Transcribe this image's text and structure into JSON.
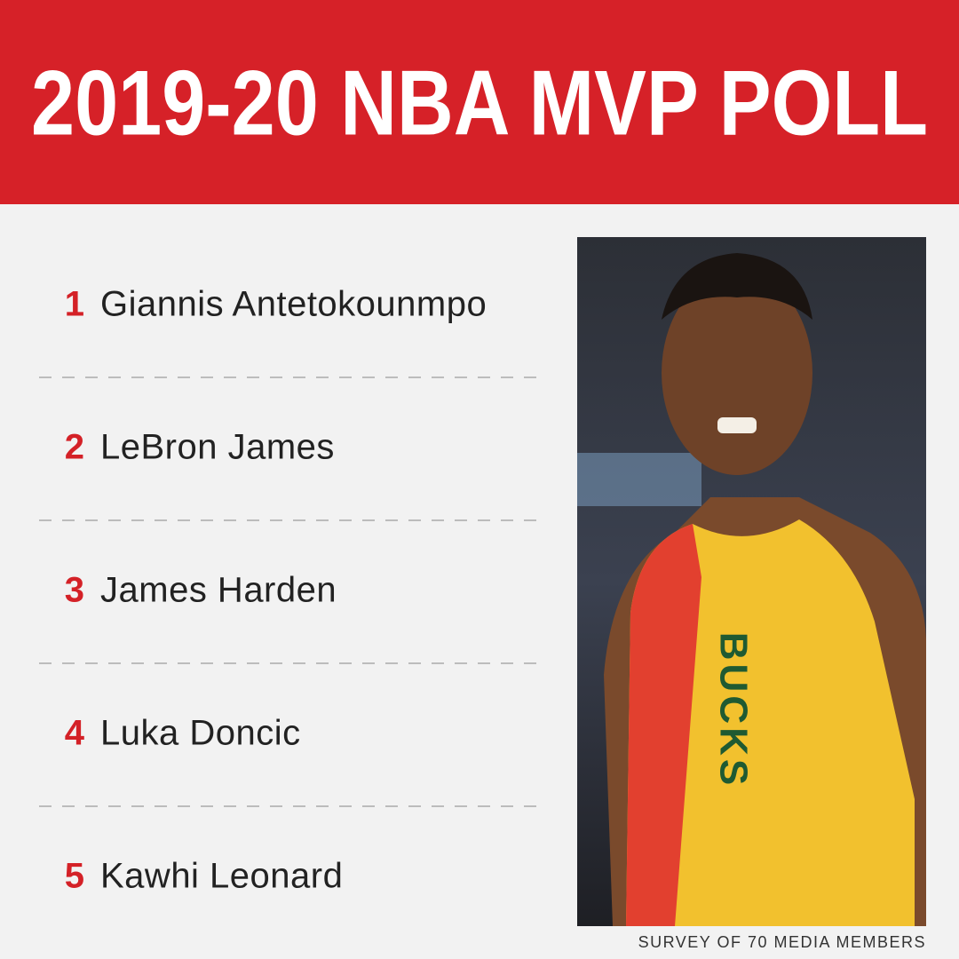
{
  "header": {
    "title": "2019-20 NBA MVP POLL"
  },
  "list": [
    {
      "rank": 1,
      "name": "Giannis Antetokounmpo"
    },
    {
      "rank": 2,
      "name": "LeBron James"
    },
    {
      "rank": 3,
      "name": "James Harden"
    },
    {
      "rank": 4,
      "name": "Luka Doncic"
    },
    {
      "rank": 5,
      "name": "Kawhi Leonard"
    }
  ],
  "photo": {
    "jersey_text": "BUCKS"
  },
  "footer": {
    "note": "SURVEY OF 70 MEDIA MEMBERS"
  }
}
